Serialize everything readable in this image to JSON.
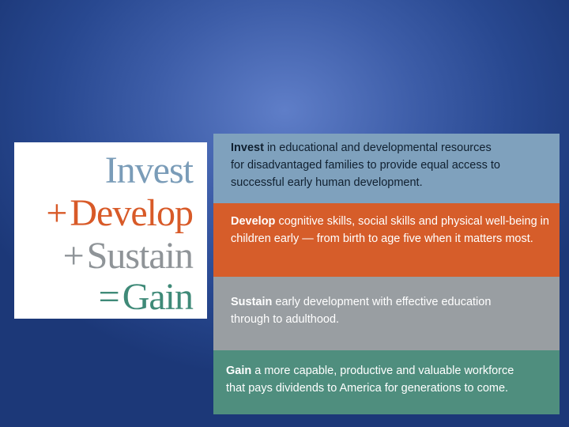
{
  "equation": {
    "invest": {
      "op": "",
      "word": "Invest"
    },
    "develop": {
      "op": "+",
      "word": "Develop"
    },
    "sustain": {
      "op": "+",
      "word": "Sustain"
    },
    "gain": {
      "op": "=",
      "word": "Gain"
    }
  },
  "bands": {
    "invest": {
      "keyword": "Invest",
      "line1": " in educational and developmental resources",
      "line2": "for disadvantaged families to provide equal access to",
      "line3": "successful early human development."
    },
    "develop": {
      "keyword": "Develop",
      "line1": " cognitive skills, social skills and physical well-being in",
      "line2": "children early — from birth to age five when it matters most."
    },
    "sustain": {
      "keyword": "Sustain",
      "line1": " early development with effective education",
      "line2": "through to adulthood."
    },
    "gain": {
      "keyword": "Gain",
      "line1": " a more capable, productive and valuable workforce",
      "line2": "that pays dividends to America for generations to come."
    }
  },
  "colors": {
    "invest": "#7fa1bd",
    "develop": "#d65d2a",
    "sustain": "#999ea2",
    "gain": "#4f8e7e",
    "background": "#2f4f98"
  }
}
